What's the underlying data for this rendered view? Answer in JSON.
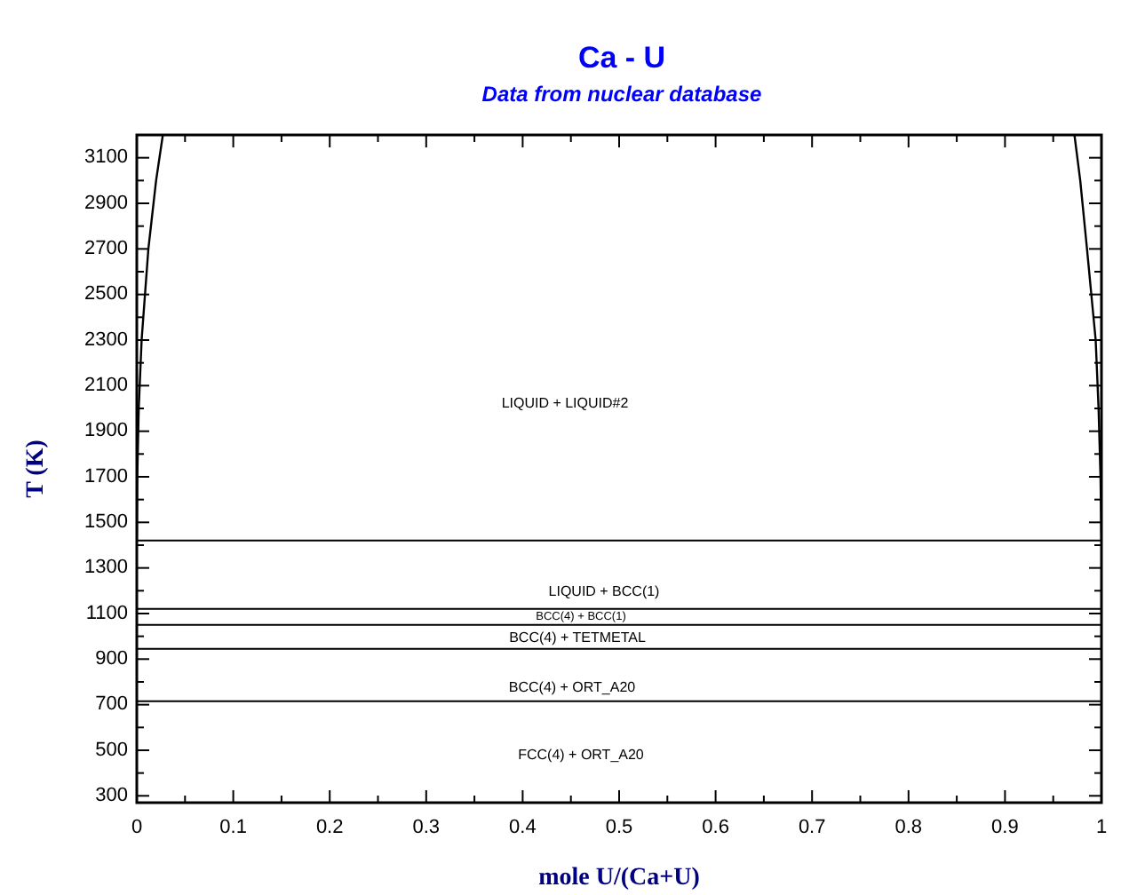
{
  "chart_data": {
    "type": "line",
    "title": "Ca - U",
    "subtitle": "Data from nuclear database",
    "xlabel": "mole U/(Ca+U)",
    "ylabel": "T (K)",
    "series": [
      {
        "color": "#000000",
        "x": [
          0,
          0.0005,
          0.002,
          0.005,
          0.012,
          0.02,
          0.027
        ],
        "values": [
          1420,
          1700,
          2000,
          2300,
          2700,
          3000,
          3200
        ]
      },
      {
        "color": "#000000",
        "x": [
          1,
          0.999,
          0.997,
          0.994,
          0.985,
          0.978,
          0.972
        ],
        "values": [
          1420,
          1700,
          2000,
          2300,
          2700,
          3000,
          3200
        ]
      }
    ],
    "ref_lines": [
      {
        "axis": "y",
        "value": 1420,
        "color": "#000000"
      },
      {
        "axis": "y",
        "value": 1120,
        "color": "#000000"
      },
      {
        "axis": "y",
        "value": 1050,
        "color": "#000000"
      },
      {
        "axis": "y",
        "value": 945,
        "color": "#000000"
      },
      {
        "axis": "y",
        "value": 715,
        "color": "#000000"
      }
    ],
    "annotations": [
      "LIQUID + LIQUID#2",
      "LIQUID + BCC(1)",
      "BCC(4) + BCC(1)",
      "BCC(4) + TETMETAL",
      "BCC(4) + ORT_A20",
      "FCC(4) + ORT_A20"
    ],
    "xlim": [
      0,
      1
    ],
    "xticks": [
      0,
      0.1,
      0.2,
      0.3,
      0.4,
      0.5,
      0.6,
      0.7,
      0.8,
      0.9,
      1
    ],
    "ylim": [
      270,
      3200
    ],
    "yticks": [
      300,
      500,
      700,
      900,
      1100,
      1300,
      1500,
      1700,
      1900,
      2100,
      2300,
      2500,
      2700,
      2900,
      3100
    ],
    "grid": false,
    "marker": "none",
    "line_style": "solid"
  }
}
